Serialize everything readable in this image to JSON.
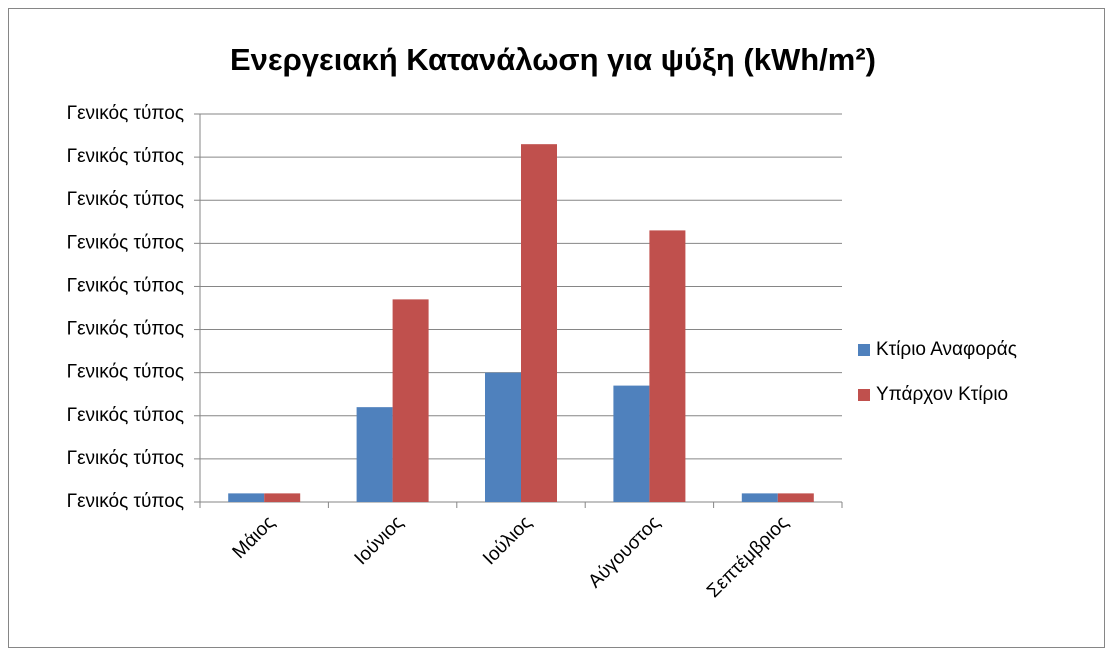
{
  "chart_data": {
    "type": "bar",
    "title": "Ενεργειακή Κατανάλωση για ψύξη (kWh/m²)",
    "categories": [
      "Μάιος",
      "Ιούνιος",
      "Ιούλιος",
      "Αύγουστος",
      "Σεπτέμβριος"
    ],
    "series": [
      {
        "name": "Κτίριο Αναφοράς",
        "color": "#4f81bd",
        "values": [
          0.2,
          2.2,
          3.0,
          2.7,
          0.2
        ]
      },
      {
        "name": "Υπάρχον Κτίριο",
        "color": "#c0504d",
        "values": [
          0.2,
          4.7,
          8.3,
          6.3,
          0.2
        ]
      }
    ],
    "ylim": [
      0,
      9
    ],
    "yticks": [
      {
        "value": 0,
        "label": "Γενικός τύπος"
      },
      {
        "value": 1,
        "label": "Γενικός τύπος"
      },
      {
        "value": 2,
        "label": "Γενικός τύπος"
      },
      {
        "value": 3,
        "label": "Γενικός τύπος"
      },
      {
        "value": 4,
        "label": "Γενικός τύπος"
      },
      {
        "value": 5,
        "label": "Γενικός τύπος"
      },
      {
        "value": 6,
        "label": "Γενικός τύπος"
      },
      {
        "value": 7,
        "label": "Γενικός τύπος"
      },
      {
        "value": 8,
        "label": "Γενικός τύπος"
      },
      {
        "value": 9,
        "label": "Γενικός τύπος"
      }
    ],
    "grid": true,
    "legend": "right"
  }
}
